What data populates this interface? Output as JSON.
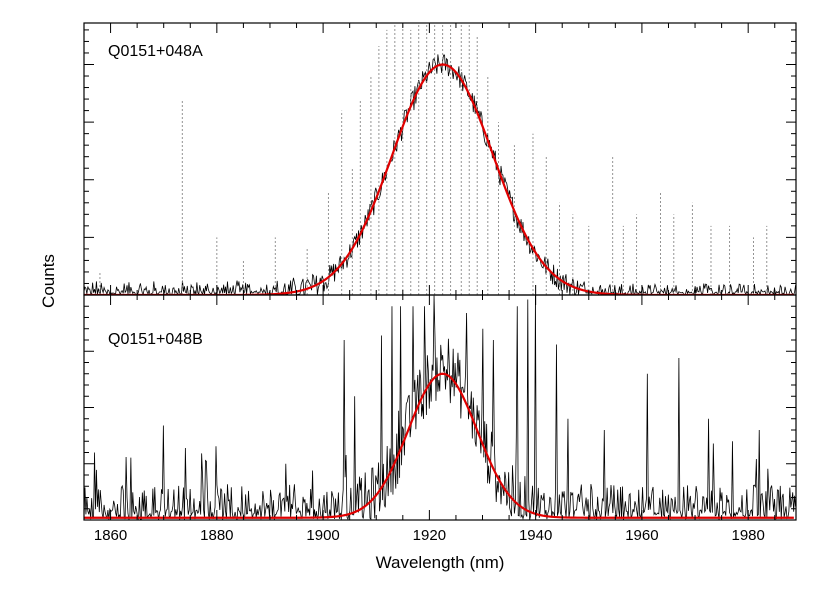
{
  "chart_data": {
    "type": "line",
    "xlabel": "Wavelength (nm)",
    "ylabel": "Counts",
    "xlim": [
      1855,
      1989
    ],
    "xticks": [
      1860,
      1880,
      1900,
      1920,
      1940,
      1960,
      1980
    ],
    "grid": false,
    "panels": [
      {
        "label": "Q0151+048A",
        "ylim": [
          0,
          1.18
        ],
        "series": [
          {
            "kind": "spectrum",
            "color": "#000000",
            "model": {
              "center": 1922.5,
              "sigma": 9.5,
              "amplitude": 1.0,
              "baseline": 0.0
            },
            "noise": 0.05,
            "extra_noise_below_nm": 1900,
            "extra_noise_amplitude": 0.03
          },
          {
            "kind": "sky_lines",
            "color": "#888888",
            "dashed": true,
            "x": [
              1858,
              1873.5,
              1880,
              1885,
              1891,
              1897,
              1901,
              1903.5,
              1905.5,
              1907,
              1909,
              1910.5,
              1912,
              1913.5,
              1915,
              1916.5,
              1918,
              1919.5,
              1921,
              1922.5,
              1924,
              1926,
              1927.5,
              1929,
              1931,
              1933,
              1936,
              1939.5,
              1942,
              1944.5,
              1947,
              1950,
              1954.5,
              1956.5,
              1959,
              1963.5,
              1966,
              1969.5,
              1973,
              1976.5,
              1981,
              1983.5
            ],
            "y": [
              0.1,
              0.85,
              0.25,
              0.15,
              0.25,
              0.2,
              0.45,
              0.8,
              0.55,
              0.85,
              0.95,
              1.08,
              1.15,
              1.18,
              1.18,
              1.15,
              1.18,
              1.18,
              1.18,
              1.18,
              1.18,
              1.18,
              1.18,
              1.12,
              0.95,
              0.75,
              0.65,
              0.7,
              0.6,
              0.4,
              0.35,
              0.3,
              0.6,
              0.3,
              0.35,
              0.45,
              0.35,
              0.4,
              0.3,
              0.3,
              0.25,
              0.3
            ]
          },
          {
            "kind": "gaussian_fit",
            "color": "#e00000",
            "center": 1922.5,
            "sigma": 9.5,
            "amplitude": 1.0,
            "baseline": 0.0
          }
        ]
      },
      {
        "label": "Q0151+048B",
        "ylim": [
          0,
          1.0
        ],
        "series": [
          {
            "kind": "spectrum",
            "color": "#000000",
            "model": {
              "center": 1922.5,
              "sigma": 6.5,
              "amplitude": 0.65,
              "baseline": 0.02
            },
            "noise": 0.14,
            "spikes": {
              "x": [
                1857,
                1863,
                1870,
                1874,
                1893,
                1898,
                1904,
                1906,
                1911,
                1913,
                1914.5,
                1917,
                1919,
                1927,
                1930,
                1932,
                1936.5,
                1938.5,
                1940,
                1944,
                1946,
                1953,
                1961,
                1967,
                1972.5,
                1977,
                1982
              ],
              "y": [
                0.3,
                0.28,
                0.42,
                0.32,
                0.25,
                0.22,
                0.8,
                0.55,
                0.82,
                0.95,
                0.95,
                0.95,
                0.95,
                0.92,
                0.85,
                0.8,
                0.95,
                0.98,
                1.0,
                0.78,
                0.45,
                0.4,
                0.65,
                0.72,
                0.45,
                0.35,
                0.4
              ]
            }
          },
          {
            "kind": "gaussian_fit",
            "color": "#e00000",
            "center": 1922.5,
            "sigma": 6.5,
            "amplitude": 0.64,
            "baseline": 0.01
          }
        ]
      }
    ]
  }
}
